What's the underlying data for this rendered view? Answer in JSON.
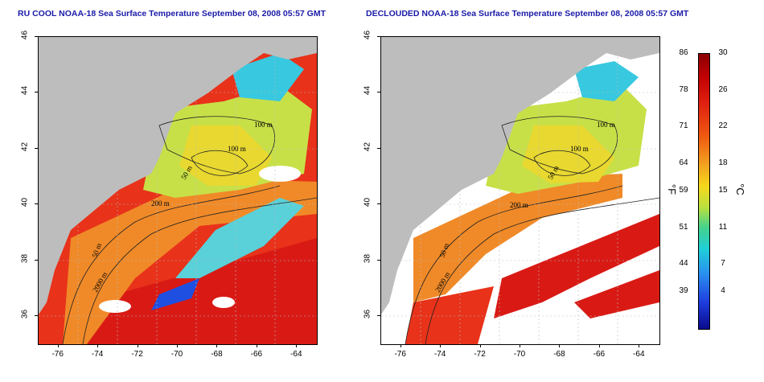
{
  "titles": {
    "left": "RU COOL NOAA-18 Sea Surface Temperature September 08, 2008 05:57 GMT",
    "right": "DECLOUDED NOAA-18 Sea Surface Temperature September 08, 2008 05:57 GMT"
  },
  "axes": {
    "lat_ticks": [
      "46",
      "44",
      "42",
      "40",
      "38",
      "36"
    ],
    "lon_ticks": [
      "-76",
      "-74",
      "-72",
      "-70",
      "-68",
      "-66",
      "-64"
    ],
    "lat_range": [
      35,
      46
    ],
    "lon_range": [
      -77,
      -63
    ]
  },
  "contour_labels": {
    "left": [
      "100 m",
      "100 m",
      "50 m",
      "200 m",
      "50 m",
      "2000 m"
    ],
    "right": [
      "100 m",
      "100 m",
      "50 m",
      "200 m",
      "50 m",
      "2000 m"
    ]
  },
  "colorbar": {
    "fahrenheit_labels": [
      "86",
      "78",
      "71",
      "64",
      "59",
      "51",
      "44",
      "39"
    ],
    "celsius_labels": [
      "30",
      "26",
      "22",
      "18",
      "15",
      "11",
      "7",
      "4"
    ],
    "unit_f": "°F",
    "unit_c": "°C",
    "range_c": [
      0,
      30
    ]
  },
  "colors": {
    "land": "#bdbdbd",
    "title": "#1a1aa8",
    "cold": "#0a0a8c",
    "warm": "#8b0000"
  }
}
